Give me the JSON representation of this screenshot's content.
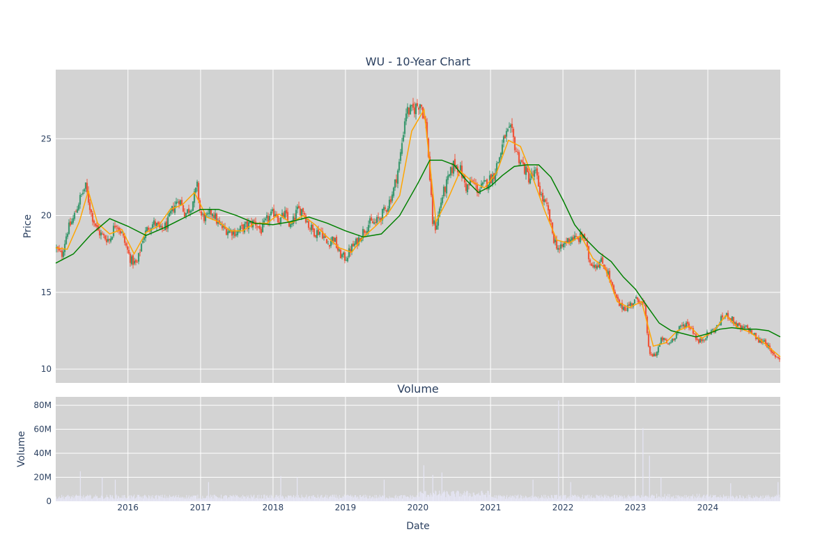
{
  "chart_data": [
    {
      "type": "candlestick",
      "title": "WU - 10-Year Chart",
      "xlabel": "",
      "ylabel": "Price",
      "ylim": [
        9.1,
        29.5
      ],
      "yticks": [
        "10",
        "15",
        "20",
        "25"
      ],
      "xlim": [
        "2015-01-02",
        "2024-12-31"
      ],
      "xticks": [
        "2016",
        "2017",
        "2018",
        "2019",
        "2020",
        "2021",
        "2022",
        "2023",
        "2024"
      ],
      "grid": true,
      "plot_bg": "#d3d3d3",
      "colors": {
        "up": "#3d9970",
        "down": "#ef553b",
        "short_ma": "#ffa500",
        "long_ma": "#008000"
      },
      "price_path": {
        "x": [
          "2015-01-02",
          "2015-02-01",
          "2015-03-01",
          "2015-04-01",
          "2015-05-01",
          "2015-06-01",
          "2015-07-01",
          "2015-08-01",
          "2015-09-01",
          "2015-10-01",
          "2015-11-01",
          "2015-12-01",
          "2016-01-15",
          "2016-02-15",
          "2016-03-15",
          "2016-04-15",
          "2016-05-15",
          "2016-06-15",
          "2016-07-15",
          "2016-08-15",
          "2016-09-15",
          "2016-10-15",
          "2016-11-15",
          "2016-12-15",
          "2017-01-01",
          "2017-02-01",
          "2017-03-01",
          "2017-04-01",
          "2017-05-01",
          "2017-06-01",
          "2017-07-01",
          "2017-08-01",
          "2017-09-01",
          "2017-10-01",
          "2017-11-01",
          "2017-12-01",
          "2018-01-15",
          "2018-02-01",
          "2018-03-01",
          "2018-04-01",
          "2018-05-01",
          "2018-06-01",
          "2018-07-01",
          "2018-08-01",
          "2018-09-01",
          "2018-10-01",
          "2018-11-01",
          "2018-12-01",
          "2019-01-01",
          "2019-02-01",
          "2019-03-01",
          "2019-04-01",
          "2019-05-01",
          "2019-06-01",
          "2019-07-01",
          "2019-08-01",
          "2019-09-01",
          "2019-10-01",
          "2019-11-01",
          "2019-12-01",
          "2020-01-15",
          "2020-02-15",
          "2020-03-15",
          "2020-04-01",
          "2020-05-01",
          "2020-06-01",
          "2020-07-01",
          "2020-08-01",
          "2020-09-01",
          "2020-10-01",
          "2020-11-01",
          "2020-12-01",
          "2021-01-15",
          "2021-02-15",
          "2021-03-15",
          "2021-04-15",
          "2021-05-15",
          "2021-06-15",
          "2021-07-15",
          "2021-08-15",
          "2021-09-15",
          "2021-10-15",
          "2021-11-15",
          "2021-12-15",
          "2022-01-15",
          "2022-02-15",
          "2022-03-15",
          "2022-04-15",
          "2022-05-15",
          "2022-06-15",
          "2022-07-15",
          "2022-08-15",
          "2022-09-15",
          "2022-10-15",
          "2022-11-15",
          "2022-12-15",
          "2023-01-15",
          "2023-02-15",
          "2023-03-15",
          "2023-04-15",
          "2023-05-15",
          "2023-06-15",
          "2023-07-15",
          "2023-08-15",
          "2023-09-15",
          "2023-10-15",
          "2023-11-15",
          "2023-12-15",
          "2024-01-15",
          "2024-02-15",
          "2024-03-15",
          "2024-04-15",
          "2024-05-15",
          "2024-06-15",
          "2024-07-15",
          "2024-08-15",
          "2024-09-15",
          "2024-10-15",
          "2024-11-15",
          "2024-12-31"
        ],
        "close": [
          17.9,
          17.4,
          19.0,
          19.8,
          21.0,
          21.9,
          20.1,
          19.0,
          18.6,
          18.4,
          19.6,
          18.8,
          17.1,
          16.8,
          18.5,
          19.3,
          19.5,
          19.0,
          19.4,
          20.5,
          21.1,
          20.1,
          20.6,
          21.9,
          20.0,
          19.8,
          20.3,
          19.4,
          19.1,
          19.0,
          18.9,
          19.2,
          19.4,
          19.6,
          19.0,
          19.7,
          20.3,
          19.6,
          20.1,
          19.2,
          20.3,
          20.4,
          19.3,
          18.9,
          19.0,
          18.1,
          18.6,
          17.5,
          17.2,
          17.9,
          18.3,
          19.0,
          19.5,
          19.5,
          20.0,
          20.6,
          21.7,
          23.5,
          26.8,
          26.8,
          27.4,
          25.5,
          19.6,
          19.2,
          21.2,
          22.3,
          23.4,
          23.0,
          21.8,
          22.2,
          21.6,
          22.0,
          22.6,
          23.8,
          25.2,
          25.5,
          24.0,
          23.2,
          22.4,
          22.8,
          21.2,
          20.4,
          18.5,
          17.7,
          18.3,
          18.6,
          18.4,
          18.8,
          17.0,
          16.8,
          17.0,
          16.3,
          14.9,
          14.1,
          14.0,
          14.3,
          14.6,
          14.1,
          10.8,
          11.0,
          12.0,
          11.6,
          12.1,
          12.7,
          13.0,
          12.6,
          11.7,
          12.1,
          12.4,
          12.7,
          13.4,
          13.5,
          13.0,
          12.6,
          12.7,
          12.3,
          11.8,
          11.9,
          11.0,
          10.7
        ]
      },
      "series": [
        {
          "name": "",
          "color": "#ffa500",
          "x": [
            "2015-01-02",
            "2015-03-01",
            "2015-05-01",
            "2015-06-15",
            "2015-08-01",
            "2015-10-01",
            "2015-12-01",
            "2016-02-01",
            "2016-04-01",
            "2016-06-01",
            "2016-08-01",
            "2016-10-01",
            "2016-12-01",
            "2017-02-01",
            "2017-04-01",
            "2017-06-01",
            "2017-08-01",
            "2017-10-01",
            "2017-12-01",
            "2018-02-01",
            "2018-04-01",
            "2018-06-01",
            "2018-08-01",
            "2018-10-01",
            "2018-12-01",
            "2019-02-01",
            "2019-04-01",
            "2019-06-01",
            "2019-08-01",
            "2019-10-01",
            "2019-12-01",
            "2020-02-01",
            "2020-04-01",
            "2020-06-01",
            "2020-08-01",
            "2020-10-01",
            "2020-12-01",
            "2021-02-01",
            "2021-04-01",
            "2021-06-01",
            "2021-08-01",
            "2021-10-01",
            "2021-12-01",
            "2022-02-01",
            "2022-04-01",
            "2022-06-01",
            "2022-08-01",
            "2022-10-01",
            "2022-12-01",
            "2023-02-01",
            "2023-04-01",
            "2023-06-01",
            "2023-08-01",
            "2023-10-01",
            "2023-12-01",
            "2024-02-01",
            "2024-04-01",
            "2024-06-01",
            "2024-08-01",
            "2024-10-01",
            "2024-12-31"
          ],
          "values": [
            17.9,
            17.8,
            19.6,
            21.6,
            19.5,
            18.8,
            19.1,
            17.5,
            18.9,
            19.3,
            20.4,
            20.7,
            21.5,
            19.9,
            19.6,
            19.0,
            19.0,
            19.5,
            19.5,
            20.1,
            19.5,
            20.0,
            19.4,
            18.6,
            17.9,
            17.6,
            18.6,
            19.3,
            20.1,
            21.3,
            25.5,
            26.9,
            19.6,
            21.1,
            22.9,
            22.2,
            21.8,
            22.8,
            24.9,
            24.5,
            22.5,
            20.3,
            18.4,
            18.2,
            18.7,
            17.2,
            16.6,
            14.4,
            14.0,
            14.4,
            11.5,
            11.7,
            12.5,
            12.8,
            12.0,
            12.5,
            13.5,
            12.7,
            12.4,
            11.8,
            10.8
          ]
        },
        {
          "name": "",
          "color": "#008000",
          "x": [
            "2015-01-02",
            "2015-04-01",
            "2015-07-01",
            "2015-10-01",
            "2016-01-01",
            "2016-04-01",
            "2016-07-01",
            "2016-10-01",
            "2017-01-01",
            "2017-04-01",
            "2017-07-01",
            "2017-10-01",
            "2018-01-01",
            "2018-04-01",
            "2018-07-01",
            "2018-10-01",
            "2019-01-01",
            "2019-04-01",
            "2019-07-01",
            "2019-10-01",
            "2020-01-01",
            "2020-03-01",
            "2020-05-01",
            "2020-07-01",
            "2020-09-01",
            "2020-11-01",
            "2021-01-01",
            "2021-03-01",
            "2021-05-01",
            "2021-07-01",
            "2021-09-01",
            "2021-11-01",
            "2022-01-01",
            "2022-03-01",
            "2022-05-01",
            "2022-07-01",
            "2022-09-01",
            "2022-11-01",
            "2023-01-01",
            "2023-03-01",
            "2023-05-01",
            "2023-07-01",
            "2023-09-01",
            "2023-11-01",
            "2024-01-01",
            "2024-03-01",
            "2024-05-01",
            "2024-07-01",
            "2024-09-01",
            "2024-11-01",
            "2024-12-31"
          ],
          "values": [
            16.9,
            17.5,
            18.8,
            19.8,
            19.3,
            18.7,
            19.2,
            19.8,
            20.4,
            20.4,
            20.0,
            19.5,
            19.4,
            19.6,
            19.9,
            19.5,
            19.0,
            18.6,
            18.8,
            20.0,
            22.1,
            23.6,
            23.6,
            23.3,
            22.3,
            21.5,
            21.9,
            22.6,
            23.2,
            23.3,
            23.3,
            22.5,
            21.0,
            19.4,
            18.4,
            17.6,
            17.0,
            16.0,
            15.2,
            14.1,
            13.0,
            12.5,
            12.3,
            12.1,
            12.3,
            12.6,
            12.7,
            12.6,
            12.6,
            12.5,
            12.1
          ]
        }
      ]
    },
    {
      "type": "bar",
      "title": "Volume",
      "xlabel": "Date",
      "ylabel": "Volume",
      "ylim": [
        0,
        87000000
      ],
      "yticks": [
        "0",
        "20M",
        "40M",
        "60M",
        "80M"
      ],
      "xticks": [
        "2016",
        "2017",
        "2018",
        "2019",
        "2020",
        "2021",
        "2022",
        "2023",
        "2024"
      ],
      "grid": true,
      "plot_bg": "#d3d3d3",
      "color": "#e6e6f5",
      "spikes": {
        "x": [
          "2015-05-06",
          "2015-08-24",
          "2015-10-29",
          "2017-02-10",
          "2018-02-09",
          "2018-05-03",
          "2019-07-15",
          "2020-01-31",
          "2020-03-16",
          "2020-05-01",
          "2021-08-03",
          "2021-12-10",
          "2022-02-09",
          "2023-02-08",
          "2023-03-13",
          "2023-05-10",
          "2024-04-25",
          "2024-12-20"
        ],
        "values": [
          25000000,
          20000000,
          18000000,
          16000000,
          21000000,
          20000000,
          18000000,
          30000000,
          22000000,
          24000000,
          18000000,
          84000000,
          16000000,
          61000000,
          38000000,
          20000000,
          15000000,
          16000000
        ]
      }
    }
  ]
}
